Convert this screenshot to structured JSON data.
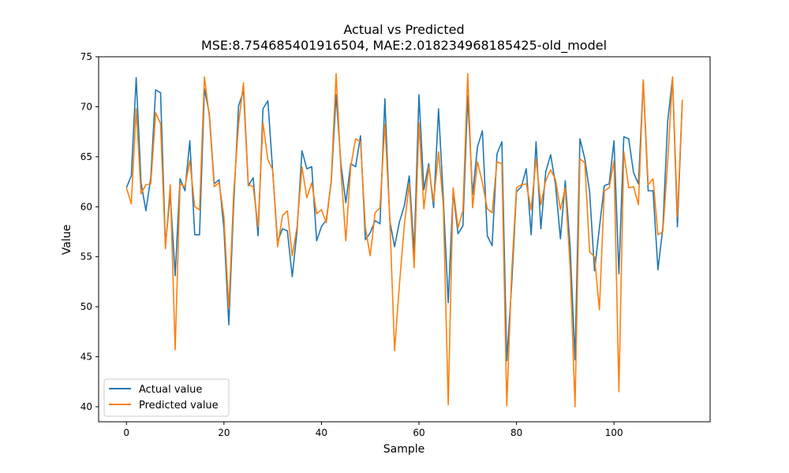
{
  "chart_data": {
    "type": "line",
    "title": "Actual vs Predicted",
    "subtitle": "MSE:8.754685401916504, MAE:2.018234968185425-old_model",
    "xlabel": "Sample",
    "ylabel": "Value",
    "xlim": [
      -5.7,
      119.7
    ],
    "ylim": [
      38.5,
      75
    ],
    "xticks": [
      0,
      20,
      40,
      60,
      80,
      100
    ],
    "yticks": [
      40,
      45,
      50,
      55,
      60,
      65,
      70,
      75
    ],
    "grid": false,
    "legend_position": "lower-left",
    "series": [
      {
        "name": "Actual value",
        "color": "#1f77b4",
        "values": [
          61.9,
          63.1,
          72.9,
          62.4,
          59.6,
          62.9,
          71.7,
          71.4,
          56.1,
          61.3,
          53.1,
          62.8,
          61.6,
          66.6,
          57.2,
          57.2,
          71.8,
          69.3,
          62.3,
          62.7,
          57.8,
          48.2,
          60.3,
          70.1,
          71.6,
          62.1,
          62.9,
          57.1,
          69.8,
          70.6,
          63.6,
          56.5,
          57.8,
          57.6,
          53.0,
          57.6,
          65.6,
          63.8,
          64.0,
          56.6,
          58.0,
          58.7,
          62.5,
          71.2,
          64.2,
          60.4,
          64.3,
          64.0,
          67.1,
          56.7,
          57.4,
          58.6,
          58.3,
          70.8,
          58.6,
          56.0,
          58.5,
          60.1,
          63.1,
          55.5,
          71.2,
          61.7,
          64.3,
          59.9,
          69.8,
          60.8,
          50.4,
          61.5,
          57.3,
          58.1,
          71.1,
          61.2,
          66.0,
          67.6,
          57.1,
          56.1,
          65.3,
          66.5,
          44.6,
          52.2,
          61.5,
          62.0,
          63.8,
          57.2,
          66.5,
          57.8,
          63.5,
          65.2,
          62.2,
          56.8,
          62.6,
          56.0,
          44.7,
          66.8,
          64.8,
          61.5,
          53.6,
          57.9,
          62.1,
          62.3,
          66.6,
          53.3,
          67.0,
          66.8,
          63.4,
          62.3,
          72.6,
          61.6,
          61.6,
          53.7,
          57.9,
          68.5,
          72.9,
          58.0,
          70.7
        ]
      },
      {
        "name": "Predicted value",
        "color": "#ff7f0e",
        "values": [
          61.9,
          60.3,
          69.8,
          61.3,
          62.2,
          62.3,
          69.4,
          68.3,
          55.8,
          62.2,
          45.7,
          62.3,
          62.0,
          64.6,
          60.0,
          59.7,
          73.0,
          69.0,
          62.0,
          62.4,
          59.0,
          49.8,
          61.4,
          68.3,
          72.4,
          62.2,
          62.0,
          58.0,
          68.4,
          64.7,
          63.7,
          56.0,
          59.1,
          59.6,
          55.1,
          58.0,
          64.0,
          60.9,
          62.4,
          59.3,
          59.7,
          58.4,
          62.7,
          73.3,
          63.5,
          56.6,
          64.0,
          66.8,
          66.5,
          57.9,
          55.1,
          59.4,
          59.9,
          68.3,
          58.9,
          45.6,
          52.3,
          58.2,
          62.3,
          53.9,
          68.4,
          59.8,
          64.0,
          60.5,
          65.5,
          60.1,
          40.2,
          61.9,
          57.9,
          59.6,
          73.3,
          59.9,
          64.5,
          62.4,
          59.8,
          59.4,
          64.5,
          64.3,
          40.1,
          53.4,
          61.9,
          62.2,
          62.3,
          59.7,
          64.8,
          60.2,
          62.6,
          63.7,
          62.7,
          59.7,
          61.9,
          54.0,
          40.0,
          64.8,
          64.4,
          55.5,
          55.0,
          49.7,
          61.6,
          61.9,
          64.6,
          41.5,
          65.5,
          61.9,
          62.0,
          60.2,
          72.7,
          62.2,
          62.8,
          57.2,
          57.5,
          64.4,
          73.0,
          59.0,
          70.7
        ]
      }
    ]
  }
}
